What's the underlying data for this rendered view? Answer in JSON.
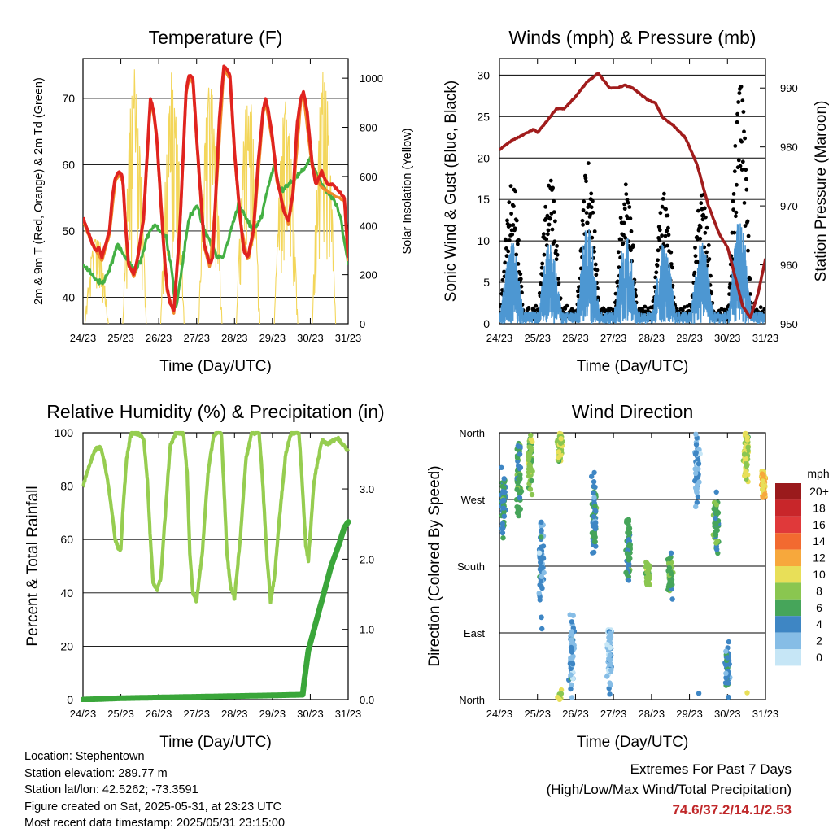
{
  "colors": {
    "temp2m": "#e0231f",
    "temp9m": "#f08a2a",
    "dewpoint": "#44b044",
    "solar": "#f3d65a",
    "pressure": "#a11c1c",
    "gust": "#000000",
    "wind": "#4d97d2",
    "rh": "#96cd50",
    "precip": "#3aa63a"
  },
  "x_ticks": [
    "24/23",
    "25/23",
    "26/23",
    "27/23",
    "28/23",
    "29/23",
    "30/23",
    "31/23"
  ],
  "x_label": "Time (Day/UTC)",
  "info": {
    "location": "Location: Stephentown",
    "elevation": "Station elevation: 289.77 m",
    "latlon": "Station lat/lon: 42.5262; -73.3591",
    "created": "Figure created on Sat, 2025-05-31, at 23:23 UTC",
    "recent": "Most recent data timestamp: 2025/05/31 23:15:00"
  },
  "extremes": {
    "title": "Extremes For Past 7 Days",
    "subtitle": "(High/Low/Max Wind/Total Precipitation)",
    "values": "74.6/37.2/14.1/2.53"
  },
  "chart_data": [
    {
      "type": "line",
      "title": "Temperature (F)",
      "xlabel": "Time (Day/UTC)",
      "ylabel": "2m & 9m T (Red, Orange) & 2m Td (Green)",
      "y2label": "Solar Insolation (Yellow)",
      "x_unit": "days since 24/23 UTC",
      "xlim": [
        0,
        7
      ],
      "ylim": [
        36,
        76
      ],
      "y_ticks": [
        40,
        50,
        60,
        70
      ],
      "y2lim": [
        0,
        1080
      ],
      "y2_ticks": [
        0,
        200,
        400,
        600,
        800,
        1000
      ],
      "grid": true,
      "series": [
        {
          "name": "2m T",
          "axis": "left",
          "color": "#e0231f",
          "x": [
            0,
            0.25,
            0.35,
            0.42,
            0.5,
            0.6,
            0.7,
            0.77,
            0.85,
            0.95,
            1.05,
            1.12,
            1.2,
            1.28,
            1.35,
            1.45,
            1.6,
            1.7,
            1.78,
            1.87,
            1.95,
            2.05,
            2.15,
            2.22,
            2.3,
            2.4,
            2.55,
            2.65,
            2.72,
            2.8,
            2.9,
            3.05,
            3.2,
            3.35,
            3.42,
            3.5,
            3.6,
            3.72,
            3.88,
            4.0,
            4.15,
            4.25,
            4.35,
            4.5,
            4.62,
            4.75,
            4.82,
            4.9,
            5.0,
            5.12,
            5.3,
            5.42,
            5.55,
            5.65,
            5.75,
            5.82,
            5.92,
            6.05,
            6.15,
            6.3,
            6.45,
            6.6,
            6.75,
            6.9,
            7.0
          ],
          "y": [
            52,
            48,
            47,
            47.5,
            46,
            48,
            50,
            55,
            58,
            59,
            58,
            51,
            45,
            44,
            43.5,
            46,
            52,
            62,
            70,
            68,
            64,
            55,
            46,
            41.5,
            39,
            38,
            50,
            62,
            71,
            73.5,
            73,
            60,
            48,
            45,
            46,
            55,
            67,
            75,
            73.5,
            62,
            52,
            47,
            46,
            50,
            60,
            68,
            70,
            68,
            64,
            58,
            53,
            51.5,
            56,
            66,
            70,
            71,
            68,
            60,
            57,
            59,
            57,
            57,
            56,
            55,
            46
          ]
        },
        {
          "name": "9m T",
          "axis": "left",
          "color": "#f08a2a",
          "x": [
            0,
            0.25,
            0.35,
            0.5,
            0.7,
            0.85,
            0.95,
            1.05,
            1.2,
            1.35,
            1.6,
            1.78,
            1.87,
            1.95,
            2.05,
            2.22,
            2.4,
            2.55,
            2.72,
            2.8,
            2.9,
            3.05,
            3.2,
            3.35,
            3.5,
            3.72,
            3.88,
            4.0,
            4.15,
            4.35,
            4.5,
            4.75,
            4.82,
            5.0,
            5.12,
            5.42,
            5.55,
            5.75,
            5.82,
            6.05,
            6.3,
            6.6,
            6.9,
            7.0
          ],
          "y": [
            51.5,
            48,
            47,
            45.5,
            49.5,
            57.5,
            58.5,
            57.5,
            45,
            43,
            51.5,
            69.5,
            67.5,
            63.5,
            54.5,
            41,
            37.5,
            49.5,
            70.5,
            73,
            72.5,
            59.5,
            47.5,
            44.5,
            54.5,
            74.5,
            73,
            61.5,
            51.5,
            45.5,
            49.5,
            67.5,
            69.5,
            63.5,
            57.5,
            51,
            55.5,
            69.5,
            70.5,
            59.5,
            56.5,
            55.5,
            54.5,
            45.5
          ]
        },
        {
          "name": "2m Td",
          "axis": "left",
          "color": "#44b044",
          "x": [
            0,
            0.15,
            0.3,
            0.5,
            0.7,
            0.9,
            1.0,
            1.1,
            1.25,
            1.4,
            1.55,
            1.75,
            1.9,
            2.05,
            2.2,
            2.35,
            2.45,
            2.6,
            2.8,
            3.0,
            3.2,
            3.4,
            3.55,
            3.7,
            3.9,
            4.1,
            4.3,
            4.5,
            4.7,
            4.9,
            5.05,
            5.2,
            5.4,
            5.6,
            5.8,
            6.0,
            6.2,
            6.4,
            6.6,
            6.8,
            7.0
          ],
          "y": [
            45,
            44,
            43,
            42,
            44,
            48,
            47,
            46,
            45,
            44,
            46,
            50,
            51,
            50,
            49,
            44,
            38,
            44,
            52,
            54,
            50,
            48,
            46,
            46,
            50,
            54,
            52,
            50,
            52,
            57,
            60,
            56,
            57,
            58,
            59,
            61,
            58,
            56,
            55,
            52,
            45
          ]
        },
        {
          "name": "Solar Insolation",
          "axis": "right",
          "color": "#f3d65a",
          "days": [
            {
              "x0": 0.05,
              "peak": 380
            },
            {
              "x0": 1.05,
              "peak": 1040
            },
            {
              "x0": 2.05,
              "peak": 1050
            },
            {
              "x0": 3.05,
              "peak": 1000
            },
            {
              "x0": 4.05,
              "peak": 980
            },
            {
              "x0": 5.05,
              "peak": 920
            },
            {
              "x0": 6.05,
              "peak": 1040
            }
          ]
        }
      ]
    },
    {
      "type": "scatter",
      "title": "Winds (mph) & Pressure (mb)",
      "xlabel": "Time (Day/UTC)",
      "ylabel": "Sonic Wind & Gust (Blue, Black)",
      "y2label": "Station Pressure (Maroon)",
      "x_unit": "days since 24/23 UTC",
      "xlim": [
        0,
        7
      ],
      "ylim": [
        0,
        32
      ],
      "y_ticks": [
        0,
        5,
        10,
        15,
        20,
        25,
        30
      ],
      "y2lim": [
        950,
        995
      ],
      "y2_ticks": [
        950,
        960,
        970,
        980,
        990
      ],
      "grid": true,
      "series": [
        {
          "name": "Station Pressure",
          "axis": "right",
          "color": "#a11c1c",
          "x": [
            0,
            0.3,
            0.6,
            0.9,
            1.0,
            1.2,
            1.5,
            1.7,
            2.0,
            2.3,
            2.6,
            2.9,
            3.1,
            3.3,
            3.5,
            3.7,
            3.9,
            4.1,
            4.3,
            4.6,
            4.9,
            5.2,
            5.5,
            5.8,
            6.0,
            6.2,
            6.4,
            6.6,
            6.8,
            7.0
          ],
          "y": [
            979.5,
            981,
            982,
            983,
            982.5,
            984,
            986.5,
            986.5,
            988.5,
            991,
            992.5,
            990,
            990,
            990.5,
            990,
            989,
            988,
            987.5,
            985,
            983.5,
            981.5,
            977,
            970,
            965,
            963,
            958,
            953,
            951,
            955,
            961
          ]
        },
        {
          "name": "Gust",
          "axis": "left",
          "color": "#000000",
          "daily_peak": [
            18,
            19,
            20,
            17.5,
            16,
            16.5,
            30
          ]
        },
        {
          "name": "Sonic Wind",
          "axis": "left",
          "color": "#4d97d2",
          "daily_peak": [
            10,
            10,
            12.5,
            11,
            10,
            10,
            13
          ]
        }
      ]
    },
    {
      "type": "line",
      "title": "Relative Humidity (%) & Precipitation (in)",
      "xlabel": "Time (Day/UTC)",
      "ylabel": "Percent & Total Rainfall",
      "x_unit": "days since 24/23 UTC",
      "xlim": [
        0,
        7
      ],
      "ylim": [
        0,
        100
      ],
      "y_ticks": [
        0,
        20,
        40,
        60,
        80,
        100
      ],
      "y2lim": [
        0,
        3.8
      ],
      "y2_ticks": [
        "0.0",
        "1.0",
        "2.0",
        "3.0"
      ],
      "grid": true,
      "series": [
        {
          "name": "Relative Humidity",
          "axis": "left",
          "color": "#96cd50",
          "x": [
            0,
            0.15,
            0.3,
            0.45,
            0.55,
            0.65,
            0.75,
            0.85,
            0.93,
            1.0,
            1.05,
            1.15,
            1.25,
            1.3,
            1.45,
            1.6,
            1.7,
            1.78,
            1.85,
            1.95,
            2.05,
            2.15,
            2.3,
            2.45,
            2.55,
            2.65,
            2.75,
            2.82,
            2.9,
            3.0,
            3.15,
            3.3,
            3.45,
            3.55,
            3.65,
            3.72,
            3.8,
            3.9,
            4.0,
            4.15,
            4.3,
            4.45,
            4.55,
            4.65,
            4.75,
            4.85,
            4.95,
            5.05,
            5.2,
            5.35,
            5.5,
            5.6,
            5.7,
            5.8,
            5.88,
            5.95,
            6.1,
            6.3,
            6.5,
            6.7,
            6.9,
            7.0
          ],
          "y": [
            80,
            87,
            93,
            95,
            90,
            82,
            72,
            60,
            57,
            56,
            70,
            90,
            99,
            100,
            100,
            98,
            82,
            60,
            44,
            41,
            45,
            65,
            95,
            100,
            100,
            100,
            85,
            55,
            40,
            37,
            55,
            85,
            99,
            100,
            100,
            80,
            55,
            42,
            38,
            60,
            90,
            100,
            100,
            100,
            80,
            55,
            37,
            45,
            70,
            92,
            100,
            100,
            100,
            78,
            58,
            52,
            82,
            97,
            96,
            98,
            95,
            93
          ]
        },
        {
          "name": "Total Rainfall",
          "axis": "right",
          "color": "#3aa63a",
          "x": [
            0,
            1,
            2,
            3,
            4,
            5,
            5.8,
            5.85,
            5.95,
            6.05,
            6.15,
            6.35,
            6.55,
            6.75,
            6.9,
            7.0
          ],
          "y": [
            0,
            0.02,
            0.03,
            0.04,
            0.05,
            0.06,
            0.07,
            0.3,
            0.7,
            0.9,
            1.1,
            1.5,
            1.9,
            2.2,
            2.45,
            2.53
          ]
        }
      ]
    },
    {
      "type": "scatter",
      "title": "Wind Direction",
      "xlabel": "Time (Day/UTC)",
      "ylabel": "Direction (Colored By Speed)",
      "x_unit": "days since 24/23 UTC",
      "xlim": [
        0,
        7
      ],
      "y_ticks": [
        "North",
        "West",
        "South",
        "East",
        "North"
      ],
      "legend_title": "mph",
      "legend": [
        "20+",
        "18",
        "16",
        "14",
        "12",
        "10",
        "8",
        "6",
        "4",
        "2",
        "0"
      ],
      "legend_colors": [
        "#9a1a1c",
        "#c8262a",
        "#e0393a",
        "#f26a30",
        "#f7a83c",
        "#e8df58",
        "#8ac650",
        "#46a55a",
        "#3e86c4",
        "#86bde6",
        "#c6e6f6"
      ],
      "clusters": [
        {
          "x": 0.1,
          "dir": 270,
          "spread": 60,
          "speed": 5
        },
        {
          "x": 0.5,
          "dir": 300,
          "spread": 70,
          "speed": 6
        },
        {
          "x": 0.8,
          "dir": 320,
          "spread": 50,
          "speed": 8
        },
        {
          "x": 1.1,
          "dir": 180,
          "spread": 90,
          "speed": 3
        },
        {
          "x": 1.6,
          "dir": 340,
          "spread": 40,
          "speed": 9
        },
        {
          "x": 1.9,
          "dir": 60,
          "spread": 80,
          "speed": 3
        },
        {
          "x": 2.5,
          "dir": 250,
          "spread": 80,
          "speed": 5
        },
        {
          "x": 2.9,
          "dir": 60,
          "spread": 80,
          "speed": 2
        },
        {
          "x": 3.4,
          "dir": 200,
          "spread": 60,
          "speed": 5
        },
        {
          "x": 3.9,
          "dir": 170,
          "spread": 25,
          "speed": 8
        },
        {
          "x": 4.5,
          "dir": 165,
          "spread": 40,
          "speed": 6
        },
        {
          "x": 5.2,
          "dir": 320,
          "spread": 70,
          "speed": 3
        },
        {
          "x": 5.7,
          "dir": 240,
          "spread": 60,
          "speed": 6
        },
        {
          "x": 6.0,
          "dir": 40,
          "spread": 40,
          "speed": 4
        },
        {
          "x": 6.5,
          "dir": 330,
          "spread": 50,
          "speed": 9
        },
        {
          "x": 6.95,
          "dir": 290,
          "spread": 30,
          "speed": 11
        }
      ]
    }
  ]
}
